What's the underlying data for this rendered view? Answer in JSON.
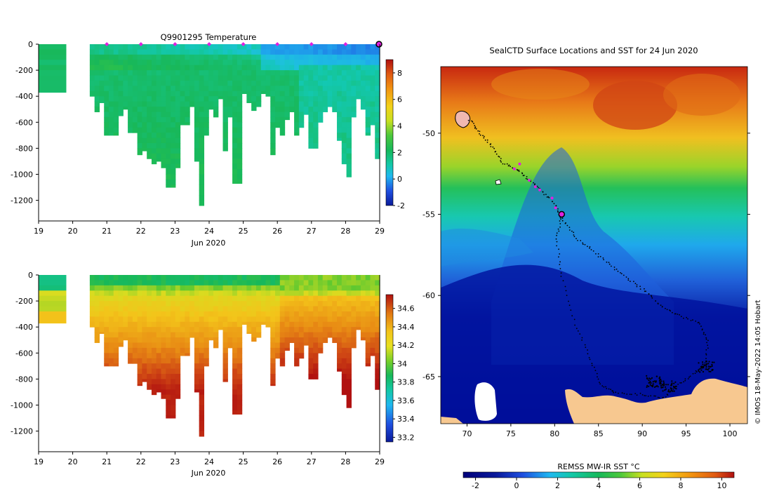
{
  "chart_data": [
    {
      "type": "heatmap",
      "title": "Q9901295  Temperature",
      "xlabel": "Jun 2020",
      "x_ticks": [
        "19",
        "20",
        "21",
        "22",
        "23",
        "24",
        "25",
        "26",
        "27",
        "28",
        "29"
      ],
      "y_ticks": [
        "0",
        "-200",
        "-400",
        "-600",
        "-800",
        "-1000",
        "-1200"
      ],
      "xlim": [
        19,
        29
      ],
      "ylim": [
        -1350,
        0
      ],
      "colorbar_ticks": [
        "-2",
        "0",
        "2",
        "4",
        "6",
        "8"
      ],
      "colorbar_range": [
        -2,
        9
      ],
      "grid": false,
      "marker_days": [
        21,
        22,
        23,
        24,
        25,
        26,
        27,
        28
      ],
      "current_day_marker": 29
    },
    {
      "type": "heatmap",
      "title": "",
      "xlabel": "Jun 2020",
      "x_ticks": [
        "19",
        "20",
        "21",
        "22",
        "23",
        "24",
        "25",
        "26",
        "27",
        "28",
        "29"
      ],
      "y_ticks": [
        "0",
        "-200",
        "-400",
        "-600",
        "-800",
        "-1000",
        "-1200"
      ],
      "xlim": [
        19,
        29
      ],
      "ylim": [
        -1350,
        0
      ],
      "colorbar_ticks": [
        "34.6",
        "34.4",
        "34.2",
        "34",
        "33.8",
        "33.6",
        "33.4",
        "33.2"
      ],
      "colorbar_range": [
        33.15,
        34.75
      ],
      "grid": false
    },
    {
      "type": "heatmap",
      "title": "SealCTD Surface Locations and SST for 24 Jun 2020",
      "xlabel": "",
      "ylabel": "",
      "x_ticks": [
        "70",
        "75",
        "80",
        "85",
        "90",
        "95",
        "100"
      ],
      "y_ticks": [
        "-50",
        "-55",
        "-60",
        "-65"
      ],
      "xlim": [
        67,
        102
      ],
      "ylim": [
        -67.9,
        -45.9
      ],
      "colorbar_label": "REMSS MW-IR SST °C",
      "colorbar_ticks": [
        "-2",
        "0",
        "2",
        "4",
        "6",
        "8",
        "10"
      ],
      "colorbar_range": [
        -2.6,
        10.6
      ],
      "grid": false,
      "current_position": [
        80.8,
        -55.0
      ],
      "recent_positions": [
        [
          75.4,
          -52.2
        ],
        [
          76.0,
          -51.9
        ],
        [
          77.1,
          -52.9
        ],
        [
          77.8,
          -53.3
        ],
        [
          78.3,
          -53.5
        ],
        [
          79.7,
          -54.0
        ],
        [
          80.1,
          -54.6
        ]
      ]
    }
  ],
  "watermark": "© IMOS 18-May-2022 14:05 Hobart"
}
